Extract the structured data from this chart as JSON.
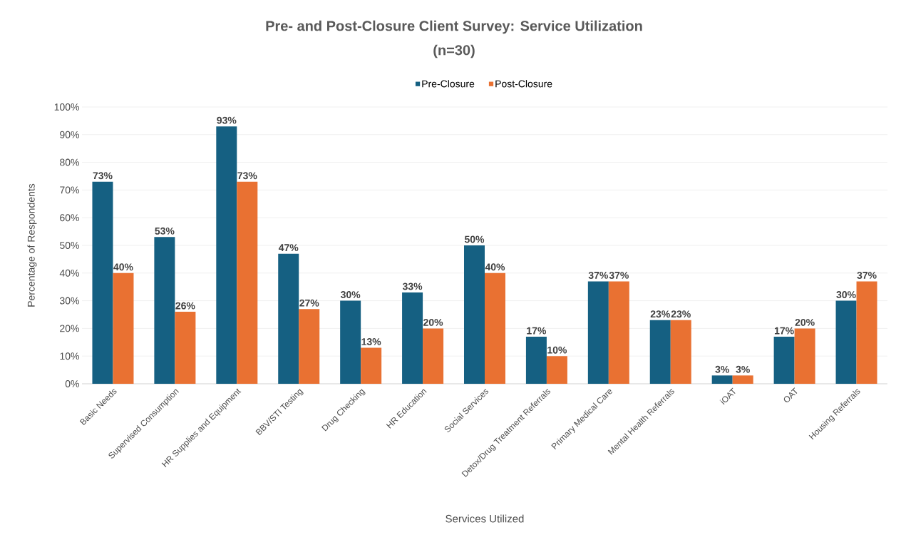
{
  "chart_data": {
    "type": "bar",
    "title": "Pre- and Post-Closure Client Survey: Service Utilization",
    "subtitle": "(n=30)",
    "xlabel": "Services Utilized",
    "ylabel": "Percentage of Respondents",
    "categories": [
      "Basic Needs",
      "Supervised Consumption",
      "HR Supplies and Equipment",
      "BBV/STI Testing",
      "Drug Checking",
      "HR Education",
      "Social Services",
      "Detox/Drug Treatment Referrals",
      "Primary Medical Care",
      "Mental Health Referrals",
      "iOAT",
      "OAT",
      "Housing Referrals"
    ],
    "series": [
      {
        "name": "Pre-Closure",
        "color": "#156082",
        "values": [
          73,
          53,
          93,
          47,
          30,
          33,
          50,
          17,
          37,
          23,
          3,
          17,
          30
        ],
        "value_labels": [
          "73%",
          "53%",
          "93%",
          "47%",
          "30%",
          "33%",
          "50%",
          "17%",
          "37%",
          "23%",
          "3%",
          "17%",
          "30%"
        ]
      },
      {
        "name": "Post-Closure",
        "color": "#e97132",
        "values": [
          40,
          26,
          73,
          27,
          13,
          20,
          40,
          10,
          37,
          23,
          3,
          20,
          37
        ],
        "value_labels": [
          "40%",
          "26%",
          "73%",
          "27%",
          "13%",
          "20%",
          "40%",
          "10%",
          "37%",
          "23%",
          "3%",
          "20%",
          "37%"
        ]
      }
    ],
    "ylim": [
      0,
      100
    ],
    "yticks": [
      {
        "value": 0,
        "label": "0%"
      },
      {
        "value": 10,
        "label": "10%"
      },
      {
        "value": 20,
        "label": "20%"
      },
      {
        "value": 30,
        "label": "30%"
      },
      {
        "value": 40,
        "label": "40%"
      },
      {
        "value": 50,
        "label": "50%"
      },
      {
        "value": 60,
        "label": "60%"
      },
      {
        "value": 70,
        "label": "70%"
      },
      {
        "value": 80,
        "label": "80%"
      },
      {
        "value": 90,
        "label": "90%"
      },
      {
        "value": 100,
        "label": "100%"
      }
    ],
    "grid": "y",
    "legend": "top"
  }
}
